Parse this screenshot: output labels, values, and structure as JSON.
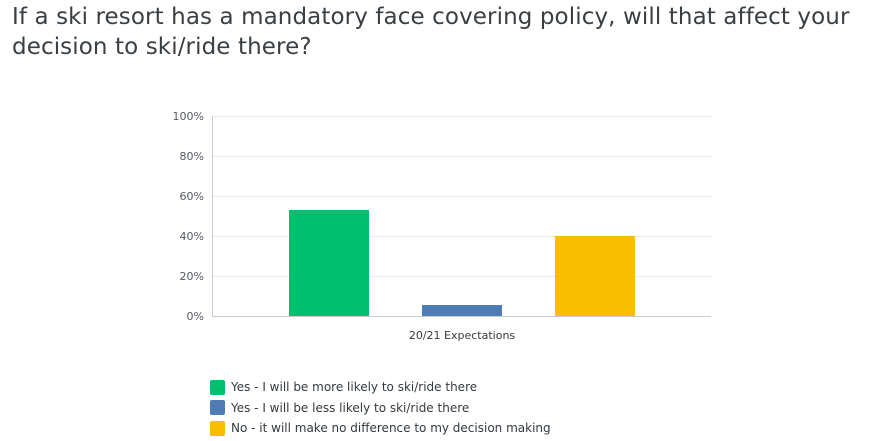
{
  "title": "If a ski resort has a mandatory face covering policy, will that affect your decision to ski/ride there?",
  "chart_data": {
    "type": "bar",
    "categories": [
      "20/21 Expectations"
    ],
    "series": [
      {
        "name": "Yes - I will be more likely to ski/ride there",
        "values": [
          53
        ],
        "color": "#00bf6f"
      },
      {
        "name": "Yes - I will be less likely to ski/ride there",
        "values": [
          5.5
        ],
        "color": "#507cb6"
      },
      {
        "name": "No - it will make no difference to my decision making",
        "values": [
          40
        ],
        "color": "#f9be00"
      }
    ],
    "yticks": [
      "0%",
      "20%",
      "40%",
      "60%",
      "80%",
      "100%"
    ],
    "ylim": [
      0,
      100
    ],
    "grid": true,
    "legend_position": "bottom-left"
  }
}
